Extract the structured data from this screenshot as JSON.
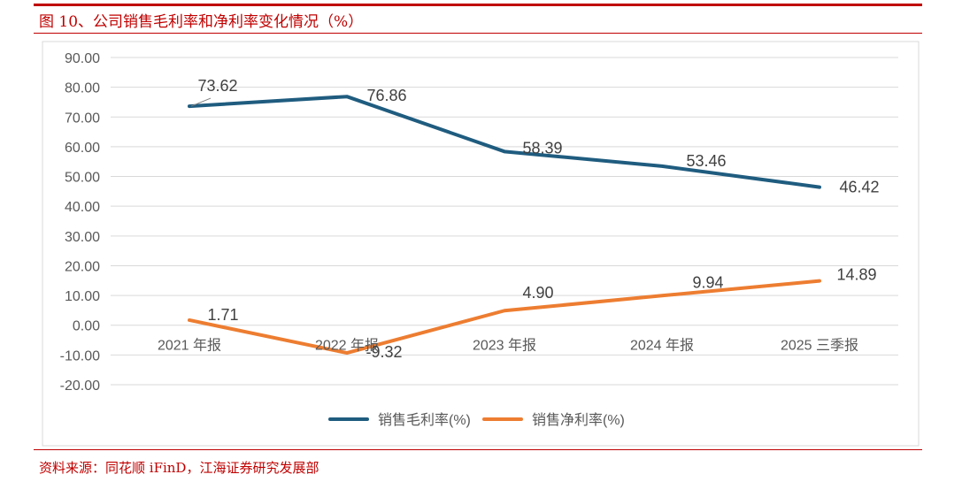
{
  "figure": {
    "title": "图 10、公司销售毛利率和净利率变化情况（%）",
    "source": "资料来源：同花顺 iFinD，江海证券研究发展部"
  },
  "chart_data": {
    "type": "line",
    "categories": [
      "2021 年报",
      "2022 年报",
      "2023 年报",
      "2024 年报",
      "2025 三季报"
    ],
    "series": [
      {
        "name": "销售毛利率(%)",
        "color": "#1f5c7f",
        "values": [
          73.62,
          76.86,
          58.39,
          53.46,
          46.42
        ],
        "labels": [
          "73.62",
          "76.86",
          "58.39",
          "53.46",
          "46.42"
        ]
      },
      {
        "name": "销售净利率(%)",
        "color": "#ed7d31",
        "values": [
          1.71,
          -9.32,
          4.9,
          9.94,
          14.89
        ],
        "labels": [
          "1.71",
          "-9.32",
          "4.90",
          "9.94",
          "14.89"
        ]
      }
    ],
    "yticks": [
      "90.00",
      "80.00",
      "70.00",
      "60.00",
      "50.00",
      "40.00",
      "30.00",
      "20.00",
      "10.00",
      "0.00",
      "-10.00",
      "-20.00"
    ],
    "ylim": [
      -20,
      90
    ],
    "grid": true,
    "legend": "bottom",
    "title": "",
    "xlabel": "",
    "ylabel": ""
  }
}
